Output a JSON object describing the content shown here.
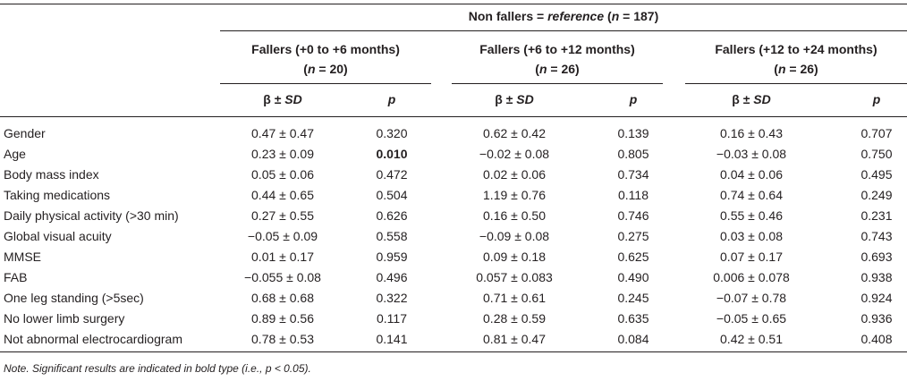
{
  "table": {
    "top_header": {
      "prefix": "Non fallers = ",
      "ref_word": "reference",
      "open_paren": " (",
      "n_var": "n",
      "n_value": " = 187)"
    },
    "groups": [
      {
        "title": "Fallers (+0 to +6 months)",
        "n_open": "(",
        "n_var": "n",
        "n_value": " = 20)"
      },
      {
        "title": "Fallers (+6 to +12 months)",
        "n_open": "(",
        "n_var": "n",
        "n_value": " = 26)"
      },
      {
        "title": "Fallers (+12 to +24 months)",
        "n_open": "(",
        "n_var": "n",
        "n_value": " = 26)"
      }
    ],
    "col_beta_prefix": "β ± ",
    "col_beta_sd": "SD",
    "col_p": "p",
    "rows": [
      {
        "label": "Gender",
        "b1": "0.47 ± 0.47",
        "p1": "0.320",
        "b2": "0.62 ± 0.42",
        "p2": "0.139",
        "b3": "0.16 ± 0.43",
        "p3": "0.707"
      },
      {
        "label": "Age",
        "b1": "0.23 ± 0.09",
        "p1": "0.010",
        "b2": "−0.02 ± 0.08",
        "p2": "0.805",
        "b3": "−0.03 ± 0.08",
        "p3": "0.750"
      },
      {
        "label": "Body mass index",
        "b1": "0.05 ± 0.06",
        "p1": "0.472",
        "b2": "0.02 ± 0.06",
        "p2": "0.734",
        "b3": "0.04 ± 0.06",
        "p3": "0.495"
      },
      {
        "label": "Taking medications",
        "b1": "0.44 ± 0.65",
        "p1": "0.504",
        "b2": "1.19 ± 0.76",
        "p2": "0.118",
        "b3": "0.74 ± 0.64",
        "p3": "0.249"
      },
      {
        "label": "Daily physical activity (>30 min)",
        "b1": "0.27 ± 0.55",
        "p1": "0.626",
        "b2": "0.16 ± 0.50",
        "p2": "0.746",
        "b3": "0.55 ± 0.46",
        "p3": "0.231"
      },
      {
        "label": "Global visual acuity",
        "b1": "−0.05 ± 0.09",
        "p1": "0.558",
        "b2": "−0.09 ± 0.08",
        "p2": "0.275",
        "b3": "0.03 ± 0.08",
        "p3": "0.743"
      },
      {
        "label": "MMSE",
        "b1": "0.01 ± 0.17",
        "p1": "0.959",
        "b2": "0.09 ± 0.18",
        "p2": "0.625",
        "b3": "0.07 ± 0.17",
        "p3": "0.693"
      },
      {
        "label": "FAB",
        "b1": "−0.055 ± 0.08",
        "p1": "0.496",
        "b2": "0.057 ± 0.083",
        "p2": "0.490",
        "b3": "0.006 ± 0.078",
        "p3": "0.938"
      },
      {
        "label": "One leg standing (>5sec)",
        "b1": "0.68 ± 0.68",
        "p1": "0.322",
        "b2": "0.71 ± 0.61",
        "p2": "0.245",
        "b3": "−0.07 ± 0.78",
        "p3": "0.924"
      },
      {
        "label": "No lower limb surgery",
        "b1": "0.89 ± 0.56",
        "p1": "0.117",
        "b2": "0.28 ± 0.59",
        "p2": "0.635",
        "b3": "−0.05 ± 0.65",
        "p3": "0.936"
      },
      {
        "label": "Not abnormal electrocardiogram",
        "b1": "0.78 ± 0.53",
        "p1": "0.141",
        "b2": "0.81 ± 0.47",
        "p2": "0.084",
        "b3": "0.42 ± 0.51",
        "p3": "0.408"
      }
    ],
    "note": "Note. Significant results are indicated in bold type (i.e., p < 0.05)."
  }
}
